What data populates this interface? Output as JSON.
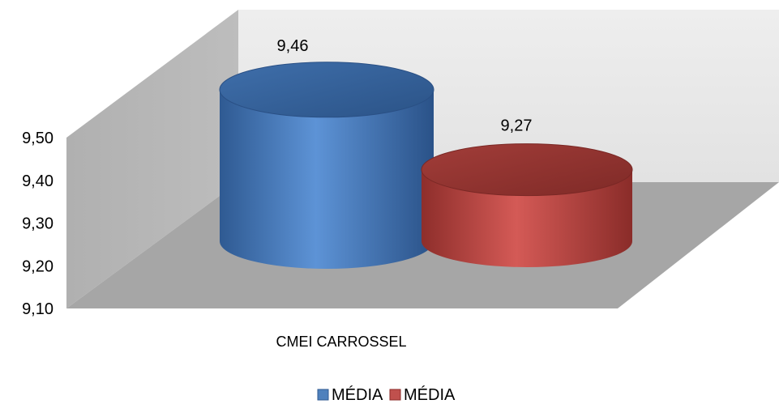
{
  "chart_data": {
    "type": "bar",
    "style": "3d-cylinder",
    "categories": [
      "CMEI CARROSSEL"
    ],
    "series": [
      {
        "name": "MÉDIA",
        "values": [
          9.46
        ],
        "color": "#4f81bd",
        "data_label": "9,46"
      },
      {
        "name": "MÉDIA",
        "values": [
          9.27
        ],
        "color": "#c0504d",
        "data_label": "9,27"
      }
    ],
    "y_ticks": [
      9.1,
      9.2,
      9.3,
      9.4,
      9.5
    ],
    "y_tick_labels": [
      "9,10",
      "9,20",
      "9,30",
      "9,40",
      "9,50"
    ],
    "ylim": [
      9.1,
      9.5
    ],
    "title": "",
    "xlabel": "",
    "ylabel": "",
    "grid": false,
    "legend_position": "bottom",
    "wall_colors": {
      "back": "#ebebeb",
      "side": "#b3b3b3",
      "floor": "#a6a6a6"
    }
  }
}
